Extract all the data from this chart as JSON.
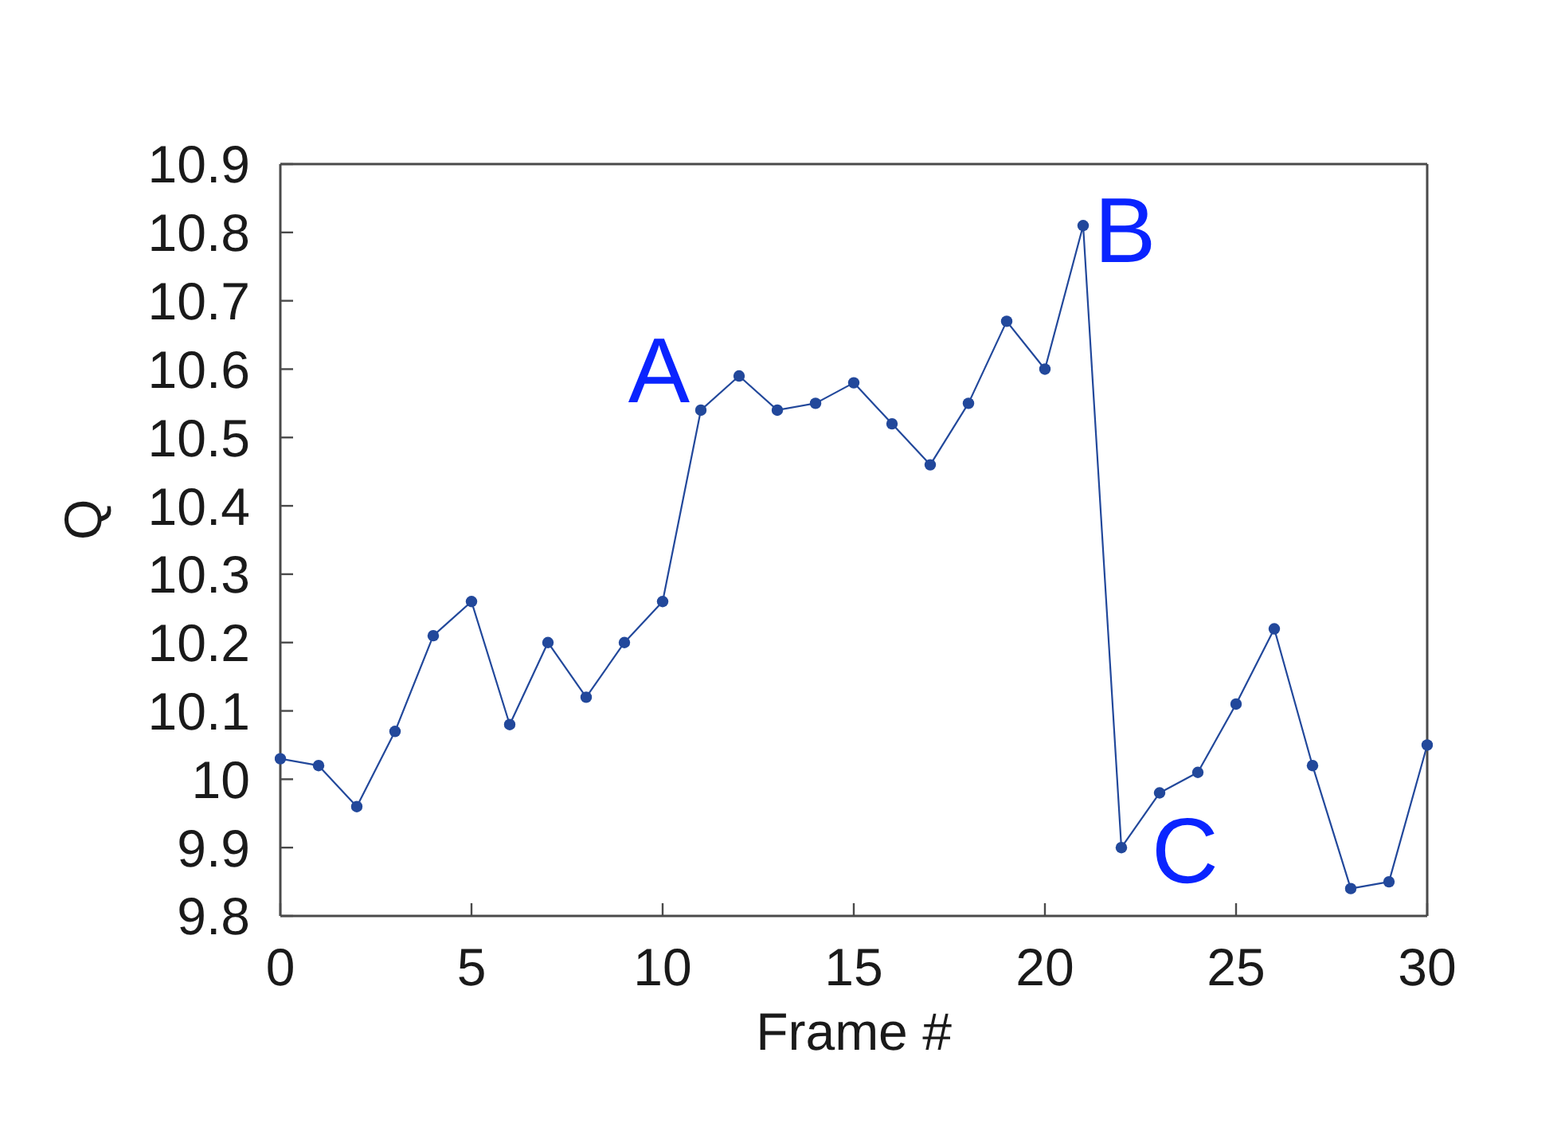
{
  "chart_data": {
    "type": "line",
    "xlabel": "Frame #",
    "ylabel": "Q",
    "x": [
      0,
      1,
      2,
      3,
      4,
      5,
      6,
      7,
      8,
      9,
      10,
      11,
      12,
      13,
      14,
      15,
      16,
      17,
      18,
      19,
      20,
      21,
      22,
      23,
      24,
      25,
      26,
      27,
      28,
      29,
      30
    ],
    "series": [
      {
        "color": "#22489b",
        "values": [
          10.03,
          10.02,
          9.96,
          10.07,
          10.21,
          10.26,
          10.08,
          10.2,
          10.12,
          10.2,
          10.26,
          10.54,
          10.59,
          10.54,
          10.55,
          10.58,
          10.52,
          10.46,
          10.55,
          10.67,
          10.6,
          10.81,
          9.9,
          9.98,
          10.01,
          10.11,
          10.22,
          10.02,
          9.84,
          9.85,
          10.05
        ]
      }
    ],
    "xlim": [
      0,
      30
    ],
    "xticks": [
      0,
      5,
      10,
      15,
      20,
      25,
      30
    ],
    "ylim": [
      9.8,
      10.9
    ],
    "yticks": [
      9.8,
      9.9,
      10,
      10.1,
      10.2,
      10.3,
      10.4,
      10.5,
      10.6,
      10.7,
      10.8,
      10.9
    ],
    "marker": "circle",
    "line_style": "solid",
    "annotations": [
      {
        "text": "A",
        "x": 11,
        "y": 10.54
      },
      {
        "text": "B",
        "x": 21,
        "y": 10.81
      },
      {
        "text": "C",
        "x": 22,
        "y": 9.9
      }
    ]
  }
}
